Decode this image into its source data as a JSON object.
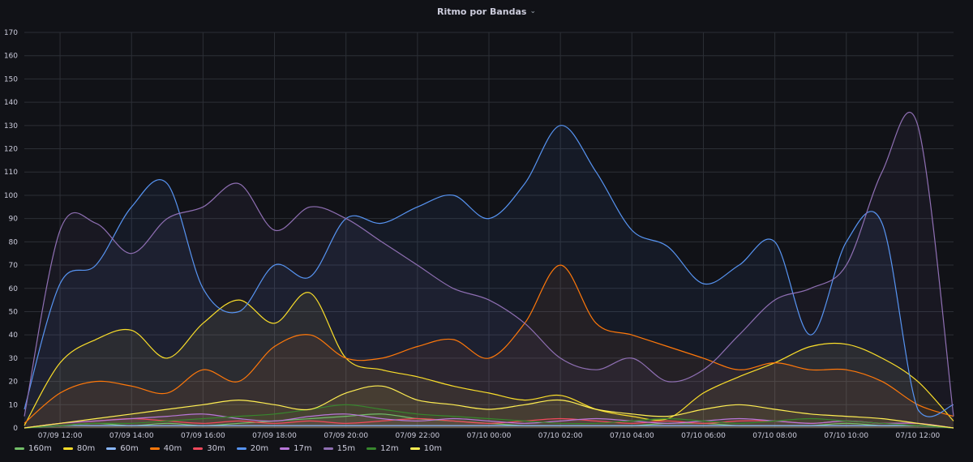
{
  "panel": {
    "title": "Ritmo por Bandas",
    "menu_icon": "chevron-down-icon"
  },
  "chart_data": {
    "type": "line",
    "fill": "area",
    "ylim": [
      0,
      170
    ],
    "yticks": [
      0,
      10,
      20,
      30,
      40,
      50,
      60,
      70,
      80,
      90,
      100,
      110,
      120,
      130,
      140,
      150,
      160,
      170
    ],
    "xlim": [
      "07/09 11:00",
      "07/10 13:00"
    ],
    "xtick_labels": [
      "07/09 12:00",
      "07/09 14:00",
      "07/09 16:00",
      "07/09 18:00",
      "07/09 20:00",
      "07/09 22:00",
      "07/10 00:00",
      "07/10 02:00",
      "07/10 04:00",
      "07/10 06:00",
      "07/10 08:00",
      "07/10 10:00",
      "07/10 12:00"
    ],
    "x": [
      "07/09 11:00",
      "07/09 12:00",
      "07/09 13:00",
      "07/09 14:00",
      "07/09 15:00",
      "07/09 16:00",
      "07/09 17:00",
      "07/09 18:00",
      "07/09 19:00",
      "07/09 20:00",
      "07/09 21:00",
      "07/09 22:00",
      "07/09 23:00",
      "07/10 00:00",
      "07/10 01:00",
      "07/10 02:00",
      "07/10 03:00",
      "07/10 04:00",
      "07/10 05:00",
      "07/10 06:00",
      "07/10 07:00",
      "07/10 08:00",
      "07/10 09:00",
      "07/10 10:00",
      "07/10 11:00",
      "07/10 12:00",
      "07/10 13:00"
    ],
    "grid": true,
    "legend_position": "bottom-left",
    "series": [
      {
        "name": "160m",
        "color": "#73bf69",
        "values": [
          0,
          1,
          2,
          1,
          2,
          1,
          2,
          3,
          4,
          5,
          6,
          4,
          3,
          2,
          1,
          1,
          1,
          1,
          2,
          2,
          1,
          1,
          1,
          2,
          1,
          1,
          0
        ]
      },
      {
        "name": "80m",
        "color": "#fade2a",
        "values": [
          1,
          28,
          38,
          42,
          30,
          45,
          55,
          45,
          58,
          30,
          25,
          22,
          18,
          15,
          12,
          14,
          8,
          5,
          4,
          15,
          22,
          28,
          35,
          36,
          30,
          20,
          3
        ]
      },
      {
        "name": "60m",
        "color": "#8ab8ff",
        "values": [
          0,
          1,
          1,
          1,
          1,
          1,
          1,
          1,
          1,
          1,
          1,
          1,
          1,
          1,
          1,
          1,
          1,
          1,
          1,
          1,
          1,
          1,
          1,
          1,
          1,
          1,
          0
        ]
      },
      {
        "name": "40m",
        "color": "#ff780a",
        "values": [
          2,
          15,
          20,
          18,
          15,
          25,
          20,
          35,
          40,
          30,
          30,
          35,
          38,
          30,
          45,
          70,
          45,
          40,
          35,
          30,
          25,
          28,
          25,
          25,
          20,
          10,
          5
        ]
      },
      {
        "name": "30m",
        "color": "#f2495c",
        "values": [
          0,
          2,
          3,
          4,
          3,
          2,
          3,
          2,
          3,
          2,
          3,
          4,
          3,
          2,
          3,
          4,
          3,
          2,
          3,
          2,
          3,
          3,
          2,
          3,
          2,
          2,
          0
        ]
      },
      {
        "name": "20m",
        "color": "#5794f2",
        "values": [
          8,
          62,
          70,
          95,
          105,
          60,
          50,
          70,
          65,
          90,
          88,
          95,
          100,
          90,
          105,
          130,
          110,
          85,
          78,
          62,
          70,
          80,
          40,
          80,
          88,
          8,
          10
        ]
      },
      {
        "name": "17m",
        "color": "#b877d9",
        "values": [
          0,
          2,
          3,
          4,
          5,
          6,
          4,
          3,
          5,
          6,
          4,
          3,
          4,
          3,
          2,
          3,
          4,
          3,
          2,
          3,
          4,
          3,
          2,
          3,
          2,
          2,
          0
        ]
      },
      {
        "name": "15m",
        "color": "#8f6fb3",
        "values": [
          5,
          85,
          88,
          75,
          90,
          95,
          105,
          85,
          95,
          90,
          80,
          70,
          60,
          55,
          45,
          30,
          25,
          30,
          20,
          25,
          40,
          55,
          60,
          70,
          110,
          130,
          5
        ]
      },
      {
        "name": "12m",
        "color": "#37872d",
        "values": [
          0,
          1,
          2,
          2,
          3,
          4,
          5,
          6,
          8,
          10,
          8,
          6,
          5,
          4,
          3,
          2,
          2,
          3,
          4,
          3,
          2,
          3,
          4,
          3,
          2,
          1,
          0
        ]
      },
      {
        "name": "10m",
        "color": "#ffee52",
        "values": [
          0,
          2,
          4,
          6,
          8,
          10,
          12,
          10,
          8,
          15,
          18,
          12,
          10,
          8,
          10,
          12,
          8,
          6,
          5,
          8,
          10,
          8,
          6,
          5,
          4,
          2,
          0
        ]
      }
    ]
  }
}
